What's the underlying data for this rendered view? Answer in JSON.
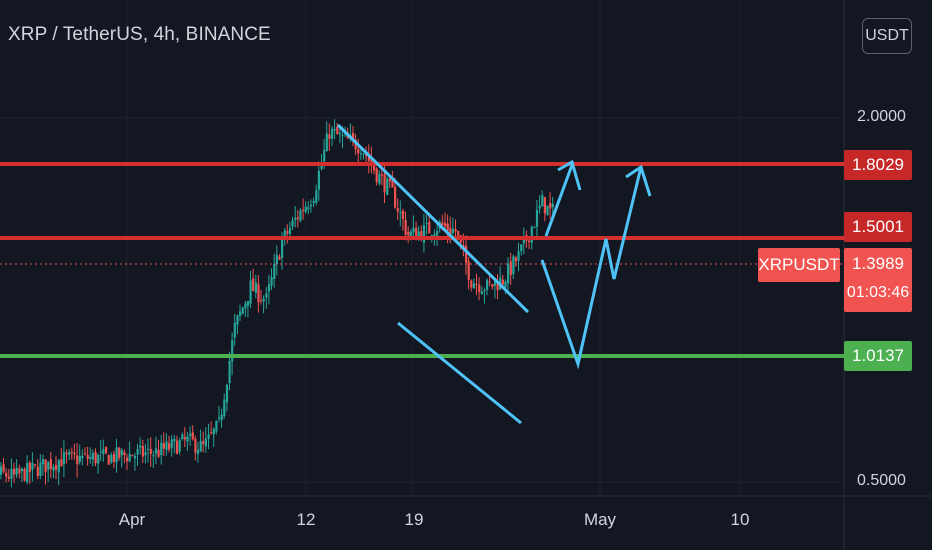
{
  "header": {
    "title": "XRP / TetherUS, 4h, BINANCE",
    "currency_button": "USDT"
  },
  "colors": {
    "background": "#131722",
    "up": "#26a69a",
    "down": "#ef5350",
    "resistance": "#d32f2f",
    "support": "#4caf50",
    "drawing": "#4fc3f7",
    "price_line": "#ef5350"
  },
  "chart_data": {
    "type": "candlestick",
    "symbol": "XRPUSDT",
    "exchange": "BINANCE",
    "timeframe": "4h",
    "scale": "log",
    "ylim": [
      0.49,
      2.6
    ],
    "y_ticks": [
      {
        "value": 2.0,
        "label": "2.0000"
      },
      {
        "value": 0.5,
        "label": "0.5000"
      }
    ],
    "x_ticks": [
      {
        "date": "2021-04-01",
        "label": "Apr"
      },
      {
        "date": "2021-04-12",
        "label": "12"
      },
      {
        "date": "2021-04-19",
        "label": "19"
      },
      {
        "date": "2021-05-01",
        "label": "May"
      },
      {
        "date": "2021-05-10",
        "label": "10"
      }
    ],
    "last_price": {
      "value": 1.3989,
      "label": "1.3989",
      "countdown": "01:03:46",
      "symbol_label": "XRPUSDT"
    },
    "horizontal_levels": [
      {
        "value": 1.8029,
        "label": "1.8029",
        "kind": "resistance"
      },
      {
        "value": 1.5001,
        "label": "1.5001",
        "kind": "resistance"
      },
      {
        "value": 1.0137,
        "label": "1.0137",
        "kind": "support"
      }
    ],
    "price_path": [
      [
        "2021-03-22",
        0.53
      ],
      [
        "2021-03-25",
        0.51
      ],
      [
        "2021-03-28",
        0.545
      ],
      [
        "2021-03-31",
        0.55
      ],
      [
        "2021-04-03",
        0.56
      ],
      [
        "2021-04-05",
        0.585
      ],
      [
        "2021-04-06",
        0.57
      ],
      [
        "2021-04-07",
        0.62
      ],
      [
        "2021-04-08",
        0.9
      ],
      [
        "2021-04-09",
        1.05
      ],
      [
        "2021-04-10",
        1.0
      ],
      [
        "2021-04-11",
        1.25
      ],
      [
        "2021-04-12",
        1.38
      ],
      [
        "2021-04-13",
        1.5
      ],
      [
        "2021-04-14",
        1.9
      ],
      [
        "2021-04-15",
        1.84
      ],
      [
        "2021-04-16",
        1.8
      ],
      [
        "2021-04-17",
        1.62
      ],
      [
        "2021-04-18",
        1.5
      ],
      [
        "2021-04-19",
        1.28
      ],
      [
        "2021-04-20",
        1.3
      ],
      [
        "2021-04-21",
        1.33
      ],
      [
        "2021-04-22",
        1.3
      ],
      [
        "2021-04-23",
        1.08
      ],
      [
        "2021-04-24",
        1.05
      ],
      [
        "2021-04-25",
        1.08
      ],
      [
        "2021-04-26",
        1.18
      ],
      [
        "2021-04-27",
        1.35
      ],
      [
        "2021-04-27T12",
        1.45
      ],
      [
        "2021-04-28",
        1.3989
      ]
    ],
    "drawings": {
      "channel_upper": [
        [
          "2021-04-14",
          2.45
        ],
        [
          "2021-04-26",
          1.09
        ]
      ],
      "channel_lower": [
        [
          "2021-04-18",
          1.07
        ],
        [
          "2021-04-27",
          0.74
        ]
      ],
      "projection_1": [
        [
          "2021-04-27T12",
          1.39
        ],
        [
          "2021-04-29T12",
          1.02
        ],
        [
          "2021-05-01",
          1.48
        ],
        [
          "2021-05-01T12",
          1.32
        ],
        [
          "2021-05-03",
          1.84
        ]
      ],
      "projection_2": [
        [
          "2021-04-27T12",
          1.5
        ],
        [
          "2021-04-28T12",
          1.84
        ]
      ]
    }
  }
}
